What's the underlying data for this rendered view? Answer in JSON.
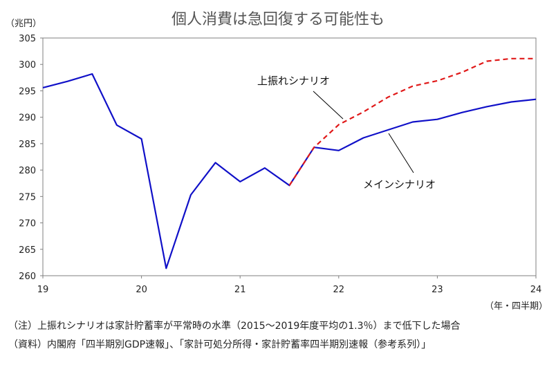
{
  "chart_data": {
    "type": "line",
    "title": "個人消費は急回復する可能性も",
    "ylabel": "（兆円）",
    "xlabel": "（年・四半期）",
    "ylim": [
      260,
      305
    ],
    "yticks": [
      260,
      265,
      270,
      275,
      280,
      285,
      290,
      295,
      300,
      305
    ],
    "xlim": [
      19,
      24
    ],
    "xticks": [
      19,
      20,
      21,
      22,
      23,
      24
    ],
    "xticklabels": [
      "19",
      "20",
      "21",
      "22",
      "23",
      "24"
    ],
    "grid": false,
    "series": [
      {
        "name": "メインシナリオ",
        "color": "#1010c8",
        "style": "solid",
        "x": [
          19.0,
          19.25,
          19.5,
          19.75,
          20.0,
          20.25,
          20.5,
          20.75,
          21.0,
          21.25,
          21.5,
          21.75,
          22.0,
          22.25,
          22.5,
          22.75,
          23.0,
          23.25,
          23.5,
          23.75,
          24.0
        ],
        "values": [
          295.6,
          296.8,
          298.2,
          288.5,
          285.9,
          261.4,
          275.3,
          281.4,
          277.8,
          280.4,
          277.1,
          284.3,
          283.7,
          286.1,
          287.6,
          289.1,
          289.6,
          290.9,
          292.0,
          292.9,
          293.4
        ]
      },
      {
        "name": "上振れシナリオ",
        "color": "#e01818",
        "style": "dashed",
        "x": [
          21.5,
          21.75,
          22.0,
          22.25,
          22.5,
          22.75,
          23.0,
          23.25,
          23.5,
          23.75,
          24.0
        ],
        "values": [
          277.1,
          284.3,
          288.6,
          291.0,
          293.8,
          295.9,
          296.9,
          298.5,
          300.6,
          301.1,
          301.1
        ]
      }
    ]
  },
  "colors": {
    "axis": "#7f7f7f",
    "main": "#1010c8",
    "upside": "#e01818"
  },
  "notes": {
    "note1": "（注）上振れシナリオは家計貯蓄率が平常時の水準（2015～2019年度平均の1.3％）まで低下した場合",
    "note2": "（資料）内閣府「四半期別GDP速報」、「家計可処分所得・家計貯蓄率四半期別速報（参考系列）」"
  }
}
